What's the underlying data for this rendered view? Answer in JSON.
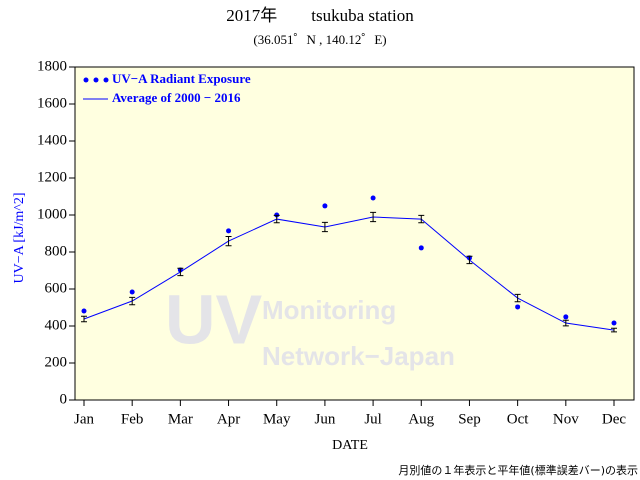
{
  "chart_data": {
    "type": "line",
    "title": "2017年　　tsukuba station",
    "subtitle": "(36.051゜N , 140.12゜E)",
    "x_label": "DATE",
    "y_label": "UV−A [kJ/m^2]",
    "note": "月別値の１年表示と平年値(標準誤差バー)の表示",
    "watermark": [
      "UV",
      "Monitoring",
      "Network−Japan"
    ],
    "categories": [
      "Jan",
      "Feb",
      "Mar",
      "Apr",
      "May",
      "Jun",
      "Jul",
      "Aug",
      "Sep",
      "Oct",
      "Nov",
      "Dec"
    ],
    "series": [
      {
        "name": "UV−A Radiant Exposure",
        "color": "#0000ff",
        "marker": "dot",
        "values": [
          481,
          584,
          703,
          914,
          1000,
          1049,
          1092,
          822,
          768,
          503,
          449,
          416
        ]
      },
      {
        "name": "Average of 2000 − 2016",
        "color": "#0000ff",
        "marker": "line",
        "values": [
          438,
          535,
          692,
          859,
          978,
          935,
          989,
          978,
          757,
          551,
          416,
          378
        ],
        "errors": [
          15,
          20,
          20,
          25,
          20,
          25,
          25,
          20,
          20,
          20,
          15,
          10
        ]
      }
    ],
    "ylim": [
      0,
      1800
    ],
    "yticks": [
      0,
      200,
      400,
      600,
      800,
      1000,
      1200,
      1400,
      1600,
      1800
    ],
    "plot_background": "#ffffe0"
  }
}
